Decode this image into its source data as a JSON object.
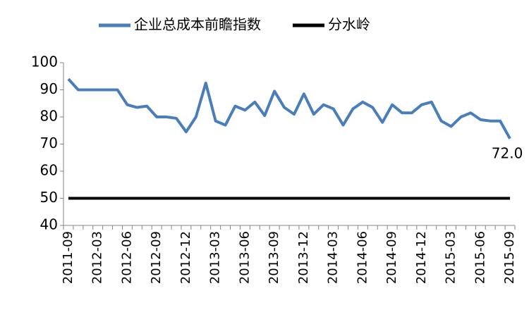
{
  "chart_data": {
    "type": "line",
    "categories": [
      "2011-09",
      null,
      null,
      "2012-03",
      null,
      null,
      "2012-06",
      null,
      null,
      "2012-09",
      null,
      null,
      "2012-12",
      null,
      null,
      "2013-03",
      null,
      null,
      "2013-06",
      null,
      null,
      "2013-09",
      null,
      null,
      "2013-12",
      null,
      null,
      "2014-03",
      null,
      null,
      "2014-06",
      null,
      null,
      "2014-09",
      null,
      null,
      "2014-12",
      null,
      null,
      "2015-03",
      null,
      null,
      "2015-06",
      null,
      null,
      "2015-09"
    ],
    "series": [
      {
        "name": "企业总成本前瞻指数",
        "color": "#4a7ebb",
        "values": [
          94,
          90,
          90,
          90,
          90,
          90,
          84.5,
          83.5,
          84,
          80,
          80,
          79.5,
          74.5,
          80,
          92.5,
          78.5,
          77,
          84,
          82.5,
          85.5,
          80.5,
          89.5,
          83.5,
          81,
          88.5,
          81,
          84.5,
          83,
          77,
          83,
          85.5,
          83.5,
          78,
          84.5,
          81.5,
          81.5,
          84.5,
          85.5,
          78.5,
          76.5,
          80,
          81.5,
          79,
          78.5,
          78.5,
          72.0
        ],
        "value_labels": [
          null,
          null,
          null,
          null,
          null,
          null,
          null,
          null,
          null,
          null,
          null,
          null,
          null,
          null,
          null,
          null,
          null,
          null,
          null,
          null,
          null,
          null,
          null,
          null,
          null,
          null,
          null,
          null,
          null,
          null,
          null,
          null,
          null,
          null,
          null,
          null,
          null,
          null,
          null,
          null,
          null,
          null,
          null,
          null,
          null,
          "72.0"
        ],
        "value_label_color": "#c00000"
      },
      {
        "name": "分水岭",
        "color": "#000000",
        "values": [
          50,
          50,
          50,
          50,
          50,
          50,
          50,
          50,
          50,
          50,
          50,
          50,
          50,
          50,
          50,
          50,
          50,
          50,
          50,
          50,
          50,
          50,
          50,
          50,
          50,
          50,
          50,
          50,
          50,
          50,
          50,
          50,
          50,
          50,
          50,
          50,
          50,
          50,
          50,
          50,
          50,
          50,
          50,
          50,
          50,
          50
        ]
      }
    ],
    "ylim": [
      40,
      100
    ],
    "yticks": [
      40,
      50,
      60,
      70,
      80,
      90,
      100
    ],
    "grid": false,
    "legend": "top"
  }
}
